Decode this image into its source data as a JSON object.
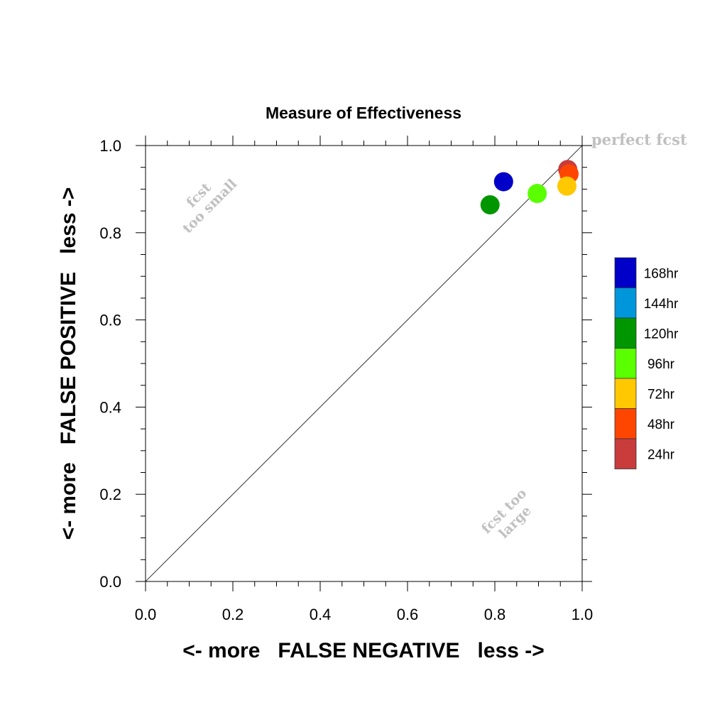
{
  "chart_data": {
    "type": "scatter",
    "title": "Measure of Effectiveness",
    "xlabel": "<- more   FALSE NEGATIVE   less ->",
    "ylabel": "<- more   FALSE POSITIVE   less ->",
    "xlim": [
      0,
      1
    ],
    "ylim": [
      0,
      1
    ],
    "xticks": [
      "0.0",
      "0.2",
      "0.4",
      "0.6",
      "0.8",
      "1.0"
    ],
    "yticks": [
      "0.0",
      "0.2",
      "0.4",
      "0.6",
      "0.8",
      "1.0"
    ],
    "grid": false,
    "diagonal_line": true,
    "annotations": {
      "perfect": "perfect fcst",
      "too_small_line1": "fcst",
      "too_small_line2": "too small",
      "too_large_line1": "fcst too",
      "too_large_line2": "large"
    },
    "legend_position": "right",
    "legend": [
      {
        "name": "168hr",
        "color": "#0000c8"
      },
      {
        "name": "144hr",
        "color": "#0096dc"
      },
      {
        "name": "120hr",
        "color": "#009600"
      },
      {
        "name": "96hr",
        "color": "#5aff00"
      },
      {
        "name": "72hr",
        "color": "#ffc800"
      },
      {
        "name": "48hr",
        "color": "#ff4600"
      },
      {
        "name": "24hr",
        "color": "#c83c3c"
      }
    ],
    "series": [
      {
        "name": "24hr",
        "x": 0.967,
        "y": 0.945,
        "color": "#c83c3c"
      },
      {
        "name": "48hr",
        "x": 0.97,
        "y": 0.935,
        "color": "#ff4600"
      },
      {
        "name": "72hr",
        "x": 0.965,
        "y": 0.907,
        "color": "#ffc800"
      },
      {
        "name": "96hr",
        "x": 0.897,
        "y": 0.89,
        "color": "#5aff00"
      },
      {
        "name": "120hr",
        "x": 0.789,
        "y": 0.864,
        "color": "#009600"
      },
      {
        "name": "168hr",
        "x": 0.82,
        "y": 0.917,
        "color": "#0000c8"
      }
    ]
  }
}
